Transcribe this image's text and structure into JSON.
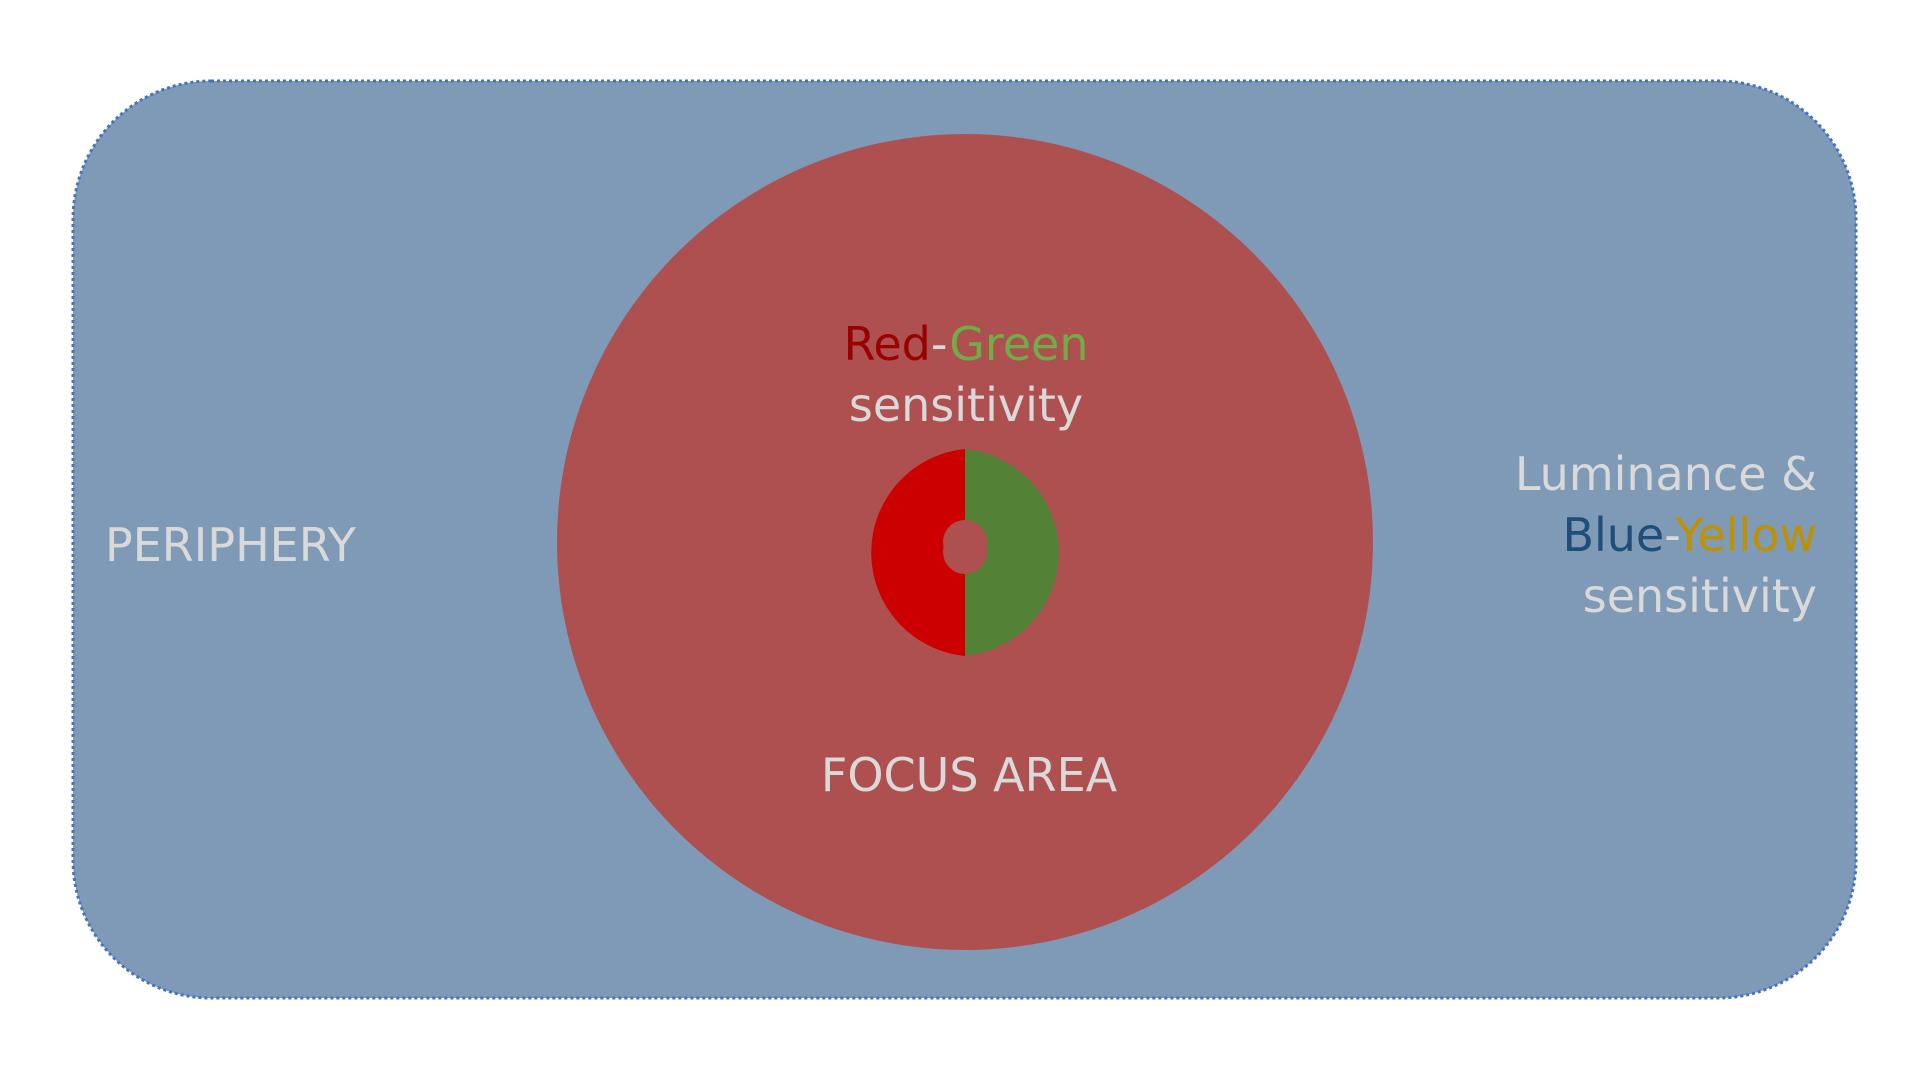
{
  "periphery": {
    "label": "PERIPHERY",
    "fill_color": "#7e9ab6",
    "border_color": "#4472c4"
  },
  "focus_area": {
    "label": "FOCUS AREA",
    "fill_color": "#af5050"
  },
  "red_green_text": {
    "red_word": "Red",
    "separator": "-",
    "green_word": "Green",
    "line2": "sensitivity",
    "red_color": "#990000",
    "green_color": "#70ad47"
  },
  "luminance_text": {
    "line1": "Luminance &",
    "blue_word": "Blue",
    "separator": "-",
    "yellow_word": "Yellow",
    "line3": "sensitivity",
    "blue_color": "#1f4e79",
    "yellow_color": "#bf9000"
  },
  "fovea_ring": {
    "left_color": "#cc0000",
    "right_color": "#538135",
    "center_color": "#af5050"
  },
  "text_color": "#d9d9d9"
}
